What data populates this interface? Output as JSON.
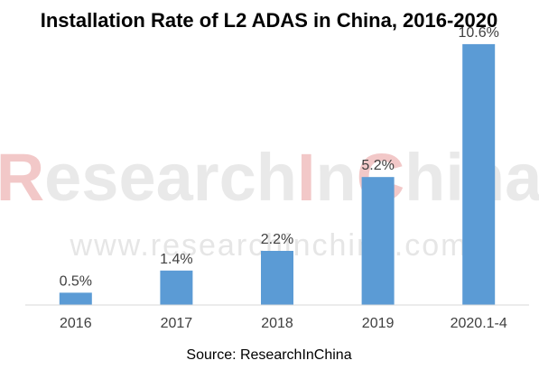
{
  "chart_data": {
    "type": "bar",
    "title": "Installation Rate of L2 ADAS in China, 2016-2020",
    "categories": [
      "2016",
      "2017",
      "2018",
      "2019",
      "2020.1-4"
    ],
    "values": [
      0.5,
      1.4,
      2.2,
      5.2,
      10.6
    ],
    "value_labels": [
      "0.5%",
      "1.4%",
      "2.2%",
      "5.2%",
      "10.6%"
    ],
    "ylim": [
      0,
      11
    ],
    "xlabel": "",
    "ylabel": "",
    "grid": false,
    "legend": "none",
    "bar_color": "#5b9bd5",
    "source": "Source: ResearchInChina"
  },
  "watermark": {
    "name_parts": [
      "R",
      "esearch",
      "I",
      "n",
      "C",
      "hina"
    ],
    "url": "www.researchinchina.com",
    "accent_color": "#f2c8c8",
    "base_color": "#e9e9e9"
  }
}
